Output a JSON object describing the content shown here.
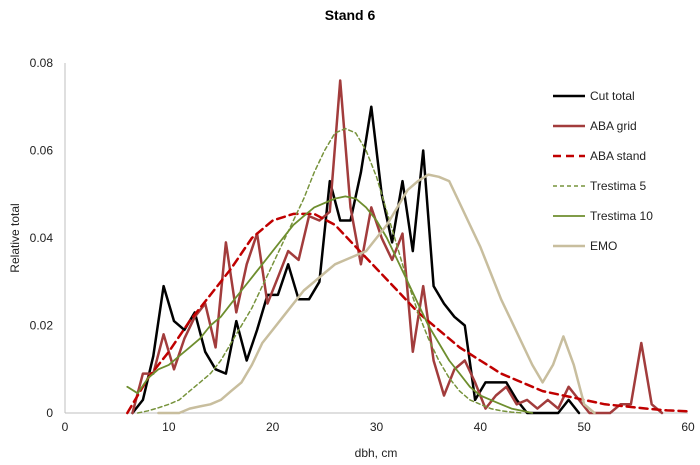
{
  "chart_data": {
    "type": "line",
    "title": "Stand 6",
    "xlabel": "dbh, cm",
    "ylabel": "Relative  total",
    "xlim": [
      0,
      60
    ],
    "ylim": [
      0,
      0.08
    ],
    "x_ticks": [
      0,
      10,
      20,
      30,
      40,
      50,
      60
    ],
    "x_tick_labels": [
      "0",
      "10",
      "20",
      "30",
      "40",
      "50",
      "60"
    ],
    "y_ticks": [
      0,
      0.02,
      0.04,
      0.06,
      0.08
    ],
    "y_tick_labels": [
      "0",
      "0.02",
      "0.04",
      "0.06",
      "0.08"
    ],
    "grid": false,
    "legend": "right",
    "series": [
      {
        "name": "Cut total",
        "color": "#000000",
        "dash": "solid",
        "width": 2.5,
        "points": [
          [
            6.5,
            0
          ],
          [
            7.5,
            0.003
          ],
          [
            8.5,
            0.013
          ],
          [
            9.5,
            0.029
          ],
          [
            10.5,
            0.021
          ],
          [
            11.5,
            0.019
          ],
          [
            12.5,
            0.023
          ],
          [
            13.5,
            0.014
          ],
          [
            14.5,
            0.01
          ],
          [
            15.5,
            0.009
          ],
          [
            16.5,
            0.021
          ],
          [
            17.5,
            0.012
          ],
          [
            18.5,
            0.019
          ],
          [
            19.5,
            0.027
          ],
          [
            20.5,
            0.027
          ],
          [
            21.5,
            0.034
          ],
          [
            22.5,
            0.026
          ],
          [
            23.5,
            0.026
          ],
          [
            24.5,
            0.03
          ],
          [
            25.5,
            0.053
          ],
          [
            26.5,
            0.044
          ],
          [
            27.5,
            0.044
          ],
          [
            28.5,
            0.055
          ],
          [
            29.5,
            0.07
          ],
          [
            30.5,
            0.05
          ],
          [
            31.5,
            0.039
          ],
          [
            32.5,
            0.053
          ],
          [
            33.5,
            0.037
          ],
          [
            34.5,
            0.06
          ],
          [
            35.5,
            0.029
          ],
          [
            36.5,
            0.025
          ],
          [
            37.5,
            0.022
          ],
          [
            38.5,
            0.02
          ],
          [
            39.5,
            0.003
          ],
          [
            40.5,
            0.007
          ],
          [
            41.5,
            0.007
          ],
          [
            42.5,
            0.007
          ],
          [
            43.5,
            0.003
          ],
          [
            44.5,
            0.0
          ],
          [
            45.5,
            0.0
          ],
          [
            46.5,
            0.0
          ],
          [
            47.5,
            0.0
          ],
          [
            48.5,
            0.003
          ],
          [
            49.5,
            0.0
          ]
        ]
      },
      {
        "name": "ABA grid",
        "color": "#A23C3C",
        "dash": "solid",
        "width": 2.5,
        "points": [
          [
            6.5,
            0
          ],
          [
            7.5,
            0.009
          ],
          [
            8.5,
            0.009
          ],
          [
            9.5,
            0.018
          ],
          [
            10.5,
            0.01
          ],
          [
            11.5,
            0.017
          ],
          [
            12.5,
            0.022
          ],
          [
            13.5,
            0.025
          ],
          [
            14.5,
            0.015
          ],
          [
            15.5,
            0.039
          ],
          [
            16.5,
            0.023
          ],
          [
            17.5,
            0.034
          ],
          [
            18.5,
            0.041
          ],
          [
            19.5,
            0.025
          ],
          [
            20.5,
            0.031
          ],
          [
            21.5,
            0.037
          ],
          [
            22.5,
            0.035
          ],
          [
            23.5,
            0.045
          ],
          [
            24.5,
            0.044
          ],
          [
            25.5,
            0.046
          ],
          [
            26.5,
            0.076
          ],
          [
            27.5,
            0.047
          ],
          [
            28.5,
            0.034
          ],
          [
            29.5,
            0.047
          ],
          [
            30.5,
            0.04
          ],
          [
            31.5,
            0.035
          ],
          [
            32.5,
            0.041
          ],
          [
            33.5,
            0.014
          ],
          [
            34.5,
            0.029
          ],
          [
            35.5,
            0.012
          ],
          [
            36.5,
            0.004
          ],
          [
            37.5,
            0.01
          ],
          [
            38.5,
            0.012
          ],
          [
            39.5,
            0.007
          ],
          [
            40.5,
            0.001
          ],
          [
            41.5,
            0.004
          ],
          [
            42.5,
            0.006
          ],
          [
            43.5,
            0.002
          ],
          [
            44.5,
            0.003
          ],
          [
            45.5,
            0.001
          ],
          [
            46.5,
            0.003
          ],
          [
            47.5,
            0.001
          ],
          [
            48.5,
            0.006
          ],
          [
            49.5,
            0.003
          ],
          [
            50.5,
            0.0
          ],
          [
            51.5,
            0.0
          ],
          [
            52.5,
            0.0
          ],
          [
            53.5,
            0.002
          ],
          [
            54.5,
            0.002
          ],
          [
            55.5,
            0.016
          ],
          [
            56.5,
            0.002
          ],
          [
            57.5,
            0.0
          ]
        ]
      },
      {
        "name": "ABA stand",
        "color": "#C00000",
        "dash": "8,5",
        "width": 2.5,
        "points": [
          [
            6,
            0
          ],
          [
            7,
            0.004
          ],
          [
            8,
            0.008
          ],
          [
            9,
            0.011
          ],
          [
            10,
            0.014
          ],
          [
            12,
            0.021
          ],
          [
            14,
            0.027
          ],
          [
            16,
            0.033
          ],
          [
            18,
            0.04
          ],
          [
            20,
            0.044
          ],
          [
            22,
            0.0455
          ],
          [
            24,
            0.0455
          ],
          [
            26,
            0.043
          ],
          [
            28,
            0.038
          ],
          [
            30,
            0.033
          ],
          [
            32,
            0.028
          ],
          [
            34,
            0.023
          ],
          [
            36,
            0.019
          ],
          [
            38,
            0.015
          ],
          [
            40,
            0.012
          ],
          [
            42,
            0.009
          ],
          [
            44,
            0.007
          ],
          [
            46,
            0.005
          ],
          [
            48,
            0.004
          ],
          [
            50,
            0.003
          ],
          [
            52,
            0.002
          ],
          [
            54,
            0.0015
          ],
          [
            56,
            0.001
          ],
          [
            58,
            0.0006
          ],
          [
            60,
            0.0004
          ]
        ]
      },
      {
        "name": "Trestima 5",
        "color": "#77933C",
        "dash": "4,3",
        "width": 1.5,
        "points": [
          [
            7,
            0
          ],
          [
            8,
            0.0005
          ],
          [
            9,
            0.0012
          ],
          [
            10,
            0.002
          ],
          [
            11,
            0.003
          ],
          [
            12,
            0.005
          ],
          [
            13,
            0.007
          ],
          [
            14,
            0.009
          ],
          [
            15,
            0.012
          ],
          [
            16,
            0.016
          ],
          [
            17,
            0.02
          ],
          [
            18,
            0.024
          ],
          [
            19,
            0.029
          ],
          [
            20,
            0.034
          ],
          [
            21,
            0.039
          ],
          [
            22,
            0.044
          ],
          [
            23,
            0.049
          ],
          [
            24,
            0.055
          ],
          [
            25,
            0.06
          ],
          [
            26,
            0.064
          ],
          [
            27,
            0.065
          ],
          [
            28,
            0.064
          ],
          [
            29,
            0.06
          ],
          [
            30,
            0.054
          ],
          [
            31,
            0.046
          ],
          [
            32,
            0.038
          ],
          [
            33,
            0.03
          ],
          [
            34,
            0.023
          ],
          [
            35,
            0.017
          ],
          [
            36,
            0.012
          ],
          [
            37,
            0.008
          ],
          [
            38,
            0.005
          ],
          [
            39,
            0.003
          ],
          [
            40,
            0.002
          ],
          [
            41,
            0.001
          ],
          [
            42,
            0.0005
          ],
          [
            43,
            0.0002
          ],
          [
            44,
            0
          ]
        ]
      },
      {
        "name": "Trestima 10",
        "color": "#6E8E2E",
        "dash": "solid",
        "width": 1.8,
        "points": [
          [
            6,
            0.006
          ],
          [
            7,
            0.0045
          ],
          [
            8,
            0.008
          ],
          [
            9,
            0.01
          ],
          [
            10,
            0.011
          ],
          [
            11,
            0.013
          ],
          [
            12,
            0.015
          ],
          [
            13,
            0.017
          ],
          [
            14,
            0.02
          ],
          [
            15,
            0.022
          ],
          [
            16,
            0.025
          ],
          [
            17,
            0.028
          ],
          [
            18,
            0.031
          ],
          [
            19,
            0.034
          ],
          [
            20,
            0.037
          ],
          [
            21,
            0.04
          ],
          [
            22,
            0.043
          ],
          [
            23,
            0.045
          ],
          [
            24,
            0.047
          ],
          [
            25,
            0.048
          ],
          [
            26,
            0.049
          ],
          [
            27,
            0.0495
          ],
          [
            28,
            0.049
          ],
          [
            29,
            0.047
          ],
          [
            30,
            0.044
          ],
          [
            31,
            0.04
          ],
          [
            32,
            0.035
          ],
          [
            33,
            0.03
          ],
          [
            34,
            0.025
          ],
          [
            35,
            0.02
          ],
          [
            36,
            0.016
          ],
          [
            37,
            0.012
          ],
          [
            38,
            0.009
          ],
          [
            39,
            0.006
          ],
          [
            40,
            0.004
          ],
          [
            41,
            0.003
          ],
          [
            42,
            0.002
          ],
          [
            43,
            0.001
          ],
          [
            44,
            0.0005
          ],
          [
            45,
            0
          ]
        ]
      },
      {
        "name": "EMO",
        "color": "#C8BE9E",
        "dash": "solid",
        "width": 2.5,
        "points": [
          [
            9,
            0
          ],
          [
            10,
            0
          ],
          [
            11,
            0
          ],
          [
            12,
            0.001
          ],
          [
            13,
            0.0015
          ],
          [
            14,
            0.002
          ],
          [
            15,
            0.003
          ],
          [
            16,
            0.005
          ],
          [
            17,
            0.007
          ],
          [
            18,
            0.011
          ],
          [
            19,
            0.016
          ],
          [
            20,
            0.019
          ],
          [
            21,
            0.022
          ],
          [
            22,
            0.025
          ],
          [
            23,
            0.028
          ],
          [
            24,
            0.03
          ],
          [
            25,
            0.032
          ],
          [
            26,
            0.034
          ],
          [
            27,
            0.035
          ],
          [
            28,
            0.036
          ],
          [
            29,
            0.037
          ],
          [
            30,
            0.04
          ],
          [
            31,
            0.043
          ],
          [
            32,
            0.047
          ],
          [
            33,
            0.051
          ],
          [
            34,
            0.053
          ],
          [
            35,
            0.0545
          ],
          [
            36,
            0.054
          ],
          [
            37,
            0.053
          ],
          [
            38,
            0.048
          ],
          [
            39,
            0.043
          ],
          [
            40,
            0.038
          ],
          [
            41,
            0.032
          ],
          [
            42,
            0.026
          ],
          [
            43,
            0.021
          ],
          [
            44,
            0.016
          ],
          [
            45,
            0.011
          ],
          [
            46,
            0.007
          ],
          [
            47,
            0.011
          ],
          [
            48,
            0.0175
          ],
          [
            49,
            0.011
          ],
          [
            50,
            0.002
          ],
          [
            51,
            0
          ]
        ]
      }
    ]
  }
}
